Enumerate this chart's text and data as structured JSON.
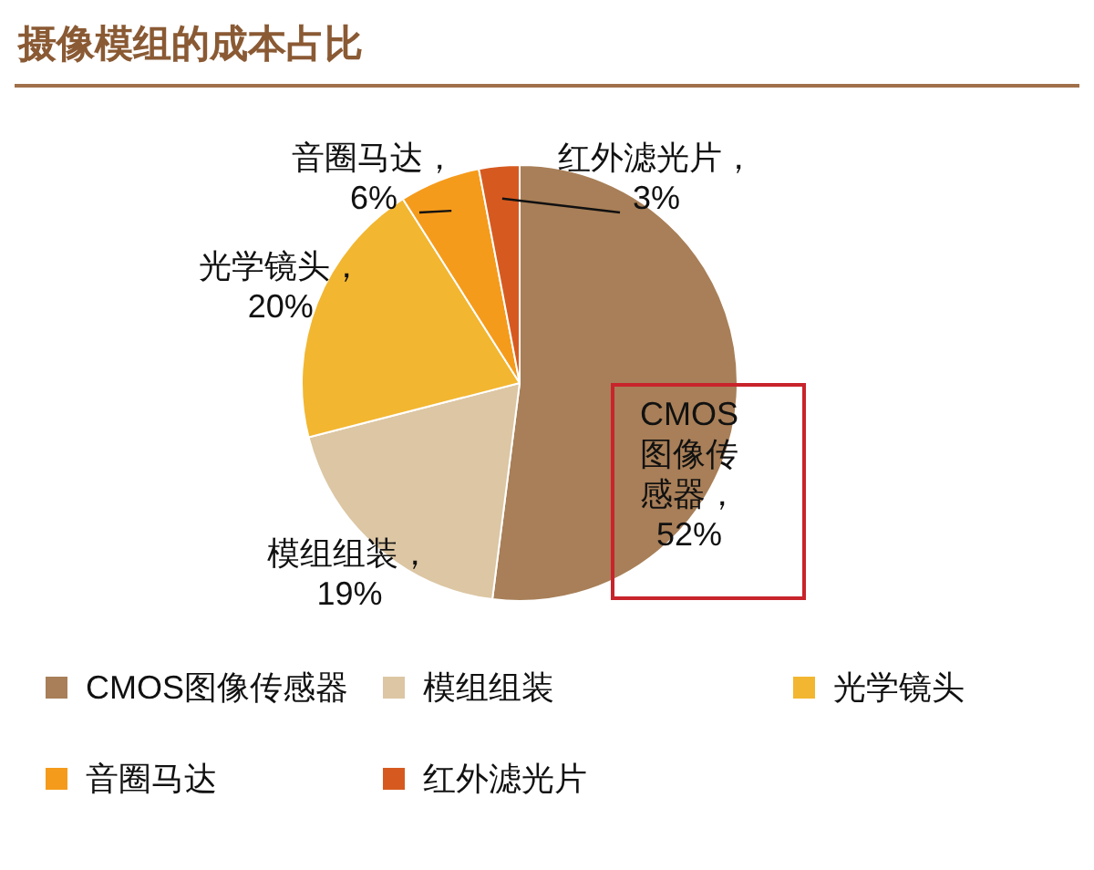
{
  "chart_data": {
    "type": "pie",
    "title": "摄像模组的成本占比",
    "categories": [
      "CMOS图像传感器",
      "模组组装",
      "光学镜头",
      "音圈马达",
      "红外滤光片"
    ],
    "values": [
      52,
      19,
      20,
      6,
      3
    ],
    "colors": [
      "#a87f58",
      "#dcc6a3",
      "#f2b630",
      "#f59b1b",
      "#d65a1f"
    ],
    "value_labels": [
      "CMOS图像传感器，52%",
      "模组组装，\n19%",
      "光学镜头，\n20%",
      "音圈马达，\n6%",
      "红外滤光片，\n3%"
    ],
    "legend": "bottom"
  }
}
